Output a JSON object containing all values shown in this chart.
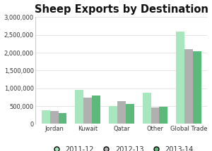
{
  "title": "Sheep Exports by Destination",
  "categories": [
    "Jordan",
    "Kuwait",
    "Qatar",
    "Other",
    "Global Trade"
  ],
  "series": {
    "2011-12": [
      380000,
      950000,
      500000,
      880000,
      2600000
    ],
    "2012-13": [
      370000,
      740000,
      640000,
      460000,
      2100000
    ],
    "2013-14": [
      310000,
      800000,
      565000,
      490000,
      2050000
    ]
  },
  "colors": {
    "2011-12": "#a8e6be",
    "2012-13": "#b0b0b0",
    "2013-14": "#5db87c"
  },
  "legend_labels": [
    "2011-12",
    "2012-13",
    "2013-14"
  ],
  "ylim": [
    0,
    3000000
  ],
  "yticks": [
    0,
    500000,
    1000000,
    1500000,
    2000000,
    2500000,
    3000000
  ],
  "background_color": "#ffffff",
  "title_fontsize": 10.5,
  "tick_fontsize": 6,
  "legend_fontsize": 7
}
